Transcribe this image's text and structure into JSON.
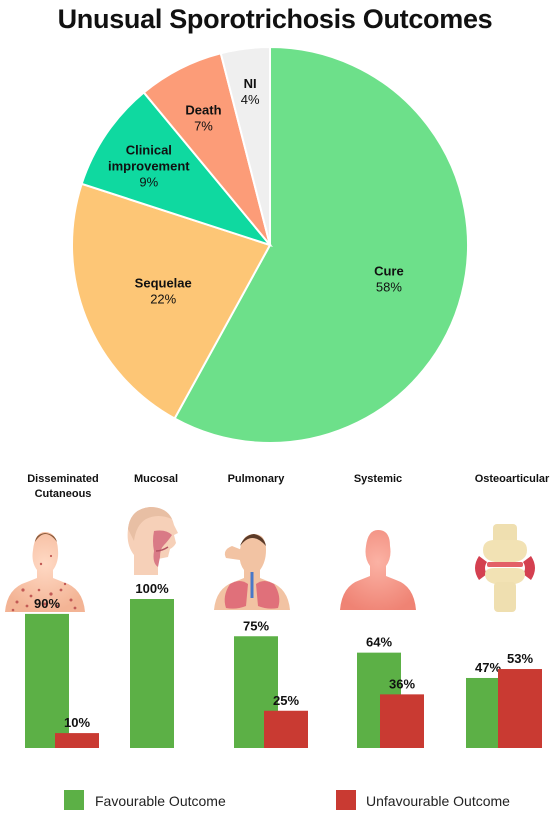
{
  "title": "Unusual Sporotrichosis Outcomes",
  "chart_data": [
    {
      "type": "pie",
      "slices": [
        {
          "label_lines": [
            "Cure"
          ],
          "value": 58,
          "value_label": "58%",
          "color": "#6de08a"
        },
        {
          "label_lines": [
            "Sequelae"
          ],
          "value": 22,
          "value_label": "22%",
          "color": "#fdc676"
        },
        {
          "label_lines": [
            "Clinical",
            "improvement"
          ],
          "value": 9,
          "value_label": "9%",
          "color": "#0fd9a0"
        },
        {
          "label_lines": [
            "Death"
          ],
          "value": 7,
          "value_label": "7%",
          "color": "#fc9c78"
        },
        {
          "label_lines": [
            "NI"
          ],
          "value": 4,
          "value_label": "4%",
          "color": "#efefef"
        }
      ]
    },
    {
      "type": "bar",
      "categories": [
        {
          "label_lines": [
            "Disseminated",
            "Cutaneous"
          ],
          "icon": "skin-lesions-torso-icon"
        },
        {
          "label_lines": [
            "Mucosal"
          ],
          "icon": "head-profile-icon"
        },
        {
          "label_lines": [
            "Pulmonary"
          ],
          "icon": "lungs-torso-icon"
        },
        {
          "label_lines": [
            "Systemic"
          ],
          "icon": "body-silhouette-icon"
        },
        {
          "label_lines": [
            "Osteoarticular"
          ],
          "icon": "knee-joint-icon"
        }
      ],
      "series": [
        {
          "name": "Favourable Outcome",
          "color": "#5cb046",
          "values": [
            90,
            100,
            75,
            64,
            47
          ],
          "labels": [
            "90%",
            "100%",
            "75%",
            "64%",
            "47%"
          ]
        },
        {
          "name": "Unfavourable Outcome",
          "color": "#c93a32",
          "values": [
            10,
            null,
            25,
            36,
            53
          ],
          "labels": [
            "10%",
            "",
            "25%",
            "36%",
            "53%"
          ]
        }
      ],
      "ylim": [
        0,
        100
      ]
    }
  ]
}
